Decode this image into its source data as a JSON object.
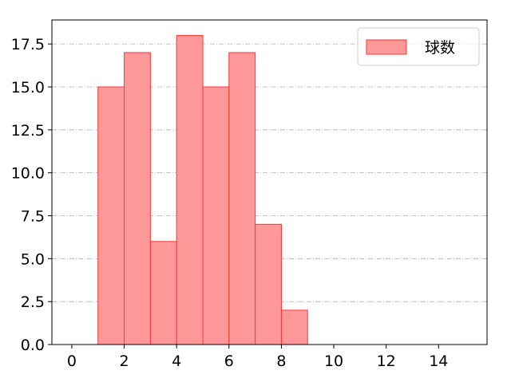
{
  "chart_data": {
    "type": "bar",
    "subtype": "histogram",
    "bins": [
      [
        1,
        2
      ],
      [
        2,
        3
      ],
      [
        3,
        4
      ],
      [
        4,
        5
      ],
      [
        5,
        6
      ],
      [
        6,
        7
      ],
      [
        7,
        8
      ],
      [
        8,
        9
      ]
    ],
    "series": [
      {
        "name": "球数",
        "values": [
          15,
          17,
          6,
          18,
          15,
          17,
          7,
          2
        ]
      }
    ],
    "xlim": [
      -0.76,
      15.85
    ],
    "ylim": [
      0,
      18.9
    ],
    "xticks": [
      0,
      2,
      4,
      6,
      8,
      10,
      12,
      14
    ],
    "yticks": [
      "0.0",
      "2.5",
      "5.0",
      "7.5",
      "10.0",
      "12.5",
      "15.0",
      "17.5"
    ],
    "xlabel": "",
    "ylabel": "",
    "title": "",
    "grid": "horizontal dash-dot",
    "legend": "top-right",
    "colors": {
      "bar_fill": "#ff9999",
      "bar_edge": "#ff3333",
      "grid": "#b0b0b0"
    }
  }
}
